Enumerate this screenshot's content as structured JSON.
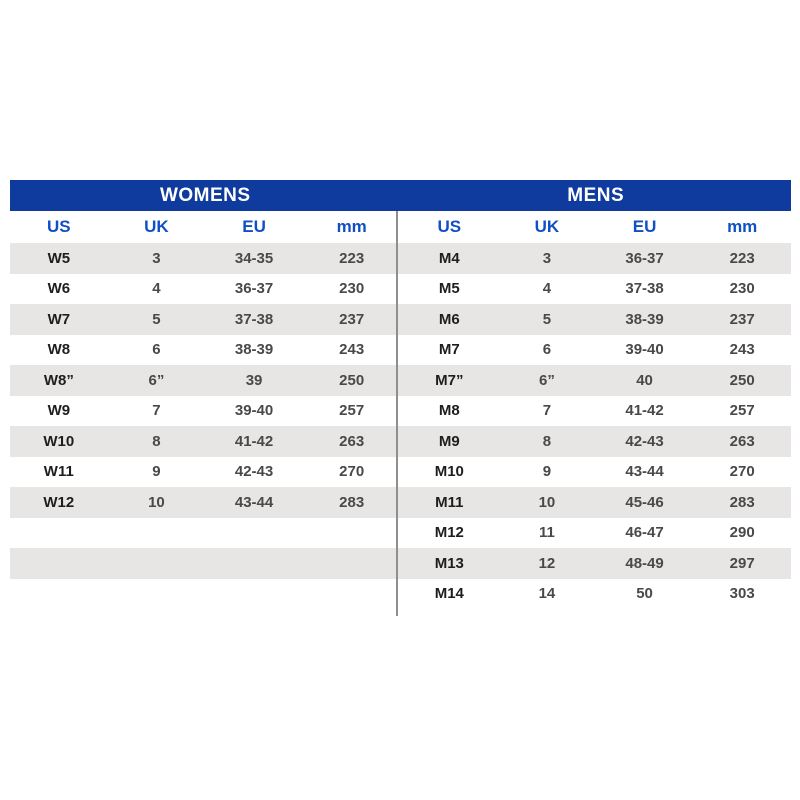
{
  "chart_data": [
    {
      "type": "table",
      "title": "WOMENS",
      "columns": [
        "US",
        "UK",
        "EU",
        "mm"
      ],
      "rows": [
        [
          "W5",
          "3",
          "34-35",
          "223"
        ],
        [
          "W6",
          "4",
          "36-37",
          "230"
        ],
        [
          "W7",
          "5",
          "37-38",
          "237"
        ],
        [
          "W8",
          "6",
          "38-39",
          "243"
        ],
        [
          "W8”",
          "6”",
          "39",
          "250"
        ],
        [
          "W9",
          "7",
          "39-40",
          "257"
        ],
        [
          "W10",
          "8",
          "41-42",
          "263"
        ],
        [
          "W11",
          "9",
          "42-43",
          "270"
        ],
        [
          "W12",
          "10",
          "43-44",
          "283"
        ]
      ]
    },
    {
      "type": "table",
      "title": "MENS",
      "columns": [
        "US",
        "UK",
        "EU",
        "mm"
      ],
      "rows": [
        [
          "M4",
          "3",
          "36-37",
          "223"
        ],
        [
          "M5",
          "4",
          "37-38",
          "230"
        ],
        [
          "M6",
          "5",
          "38-39",
          "237"
        ],
        [
          "M7",
          "6",
          "39-40",
          "243"
        ],
        [
          "M7”",
          "6”",
          "40",
          "250"
        ],
        [
          "M8",
          "7",
          "41-42",
          "257"
        ],
        [
          "M9",
          "8",
          "42-43",
          "263"
        ],
        [
          "M10",
          "9",
          "43-44",
          "270"
        ],
        [
          "M11",
          "10",
          "45-46",
          "283"
        ],
        [
          "M12",
          "11",
          "46-47",
          "290"
        ],
        [
          "M13",
          "12",
          "48-49",
          "297"
        ],
        [
          "M14",
          "14",
          "50",
          "303"
        ]
      ]
    }
  ],
  "layout_hints": {
    "row_slots": 12,
    "legend": "none",
    "grid": "striped-rows"
  },
  "colors": {
    "header_bar": "#0F3B9E",
    "header_bar_text": "#FFFFFF",
    "column_header_text": "#1150C4",
    "stripe": "#E7E6E4",
    "divider": "#8F8F8F",
    "cell_text": "#4A4948",
    "us_cell_text": "#1F1E1D"
  }
}
